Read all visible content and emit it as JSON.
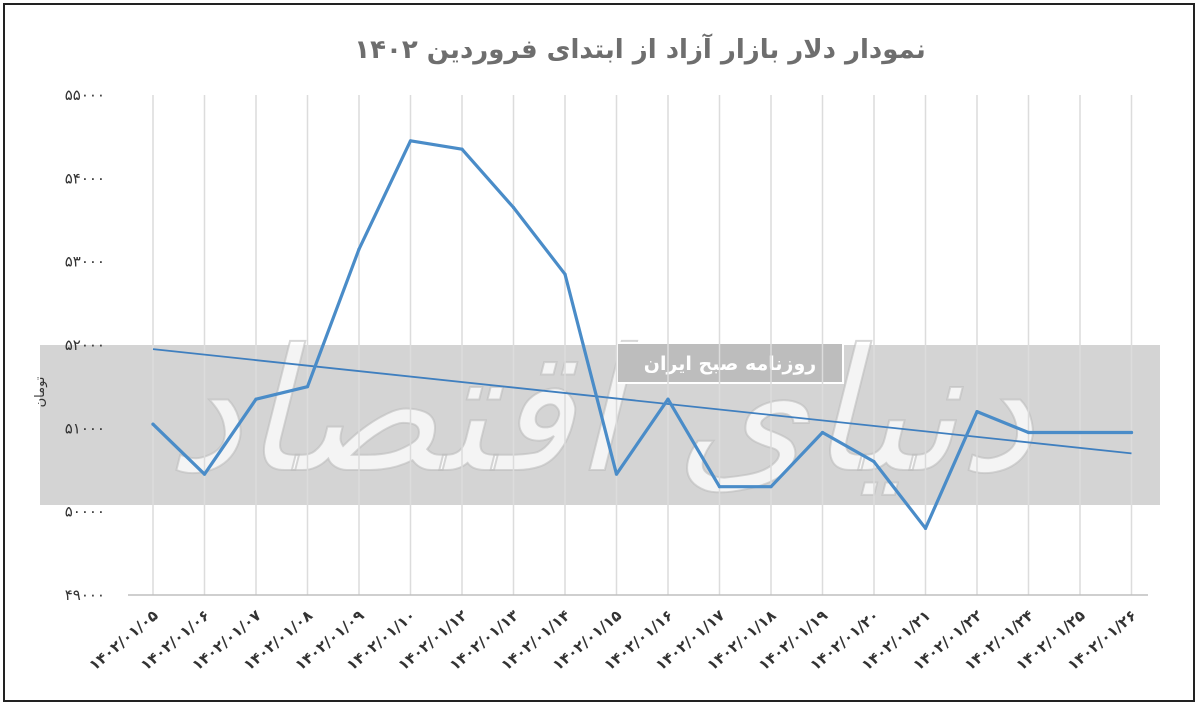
{
  "chart_data": {
    "type": "line",
    "title": "نمودار دلار بازار آزاد از ابتدای فروردین ۱۴۰۲",
    "ylabel": "تومان",
    "xlabel": "",
    "ylim": [
      49000,
      55000
    ],
    "yticks": [
      "۴۹۰۰۰",
      "۵۰۰۰۰",
      "۵۱۰۰۰",
      "۵۲۰۰۰",
      "۵۳۰۰۰",
      "۵۴۰۰۰",
      "۵۵۰۰۰"
    ],
    "ytick_values": [
      49000,
      50000,
      51000,
      52000,
      53000,
      54000,
      55000
    ],
    "categories": [
      "۱۴۰۲/۰۱/۰۵",
      "۱۴۰۲/۰۱/۰۶",
      "۱۴۰۲/۰۱/۰۷",
      "۱۴۰۲/۰۱/۰۸",
      "۱۴۰۲/۰۱/۰۹",
      "۱۴۰۲/۰۱/۱۰",
      "۱۴۰۲/۰۱/۱۲",
      "۱۴۰۲/۰۱/۱۳",
      "۱۴۰۲/۰۱/۱۴",
      "۱۴۰۲/۰۱/۱۵",
      "۱۴۰۲/۰۱/۱۶",
      "۱۴۰۲/۰۱/۱۷",
      "۱۴۰۲/۰۱/۱۸",
      "۱۴۰۲/۰۱/۱۹",
      "۱۴۰۲/۰۱/۲۰",
      "۱۴۰۲/۰۱/۲۱",
      "۱۴۰۲/۰۱/۲۲",
      "۱۴۰۲/۰۱/۲۴",
      "۱۴۰۲/۰۱/۲۵",
      "۱۴۰۲/۰۱/۲۶"
    ],
    "series": [
      {
        "values": [
          51050,
          50450,
          51350,
          51500,
          53150,
          54450,
          54350,
          53650,
          52850,
          50450,
          51350,
          50300,
          50300,
          50950,
          50600,
          49800,
          51200,
          50950,
          50950,
          50950
        ]
      }
    ],
    "trendline": {
      "start": 51950,
      "end": 50700
    },
    "grid": "vertical",
    "legend": "none",
    "colors": {
      "line": "#4a8cc8",
      "trend": "#3f7fbf",
      "grid": "#dcdcdc",
      "axis": "#bfbfbf"
    }
  },
  "watermark": {
    "brand": "دنیای اقتصاد",
    "tagline": "روزنامه صبح ایران"
  }
}
